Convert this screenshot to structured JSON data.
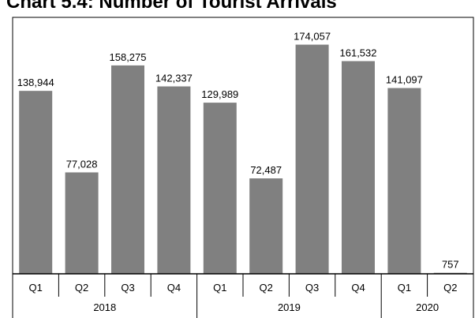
{
  "chart_data": {
    "type": "bar",
    "title": "Chart 5.4: Number of Tourist Arrivals",
    "xlabel": "",
    "ylabel": "",
    "categories": [
      "Q1",
      "Q2",
      "Q3",
      "Q4",
      "Q1",
      "Q2",
      "Q3",
      "Q4",
      "Q1",
      "Q2"
    ],
    "groups": [
      {
        "label": "2018",
        "count": 4
      },
      {
        "label": "2019",
        "count": 4
      },
      {
        "label": "2020",
        "count": 2
      }
    ],
    "values": [
      138944,
      77028,
      158275,
      142337,
      129989,
      72487,
      174057,
      161532,
      141097,
      757
    ],
    "value_labels": [
      "138,944",
      "77,028",
      "158,275",
      "142,337",
      "129,989",
      "72,487",
      "174,057",
      "161,532",
      "141,097",
      "757"
    ],
    "ylim": [
      0,
      178000
    ],
    "grid": false,
    "legend": "none",
    "bar_color": "#808080"
  }
}
